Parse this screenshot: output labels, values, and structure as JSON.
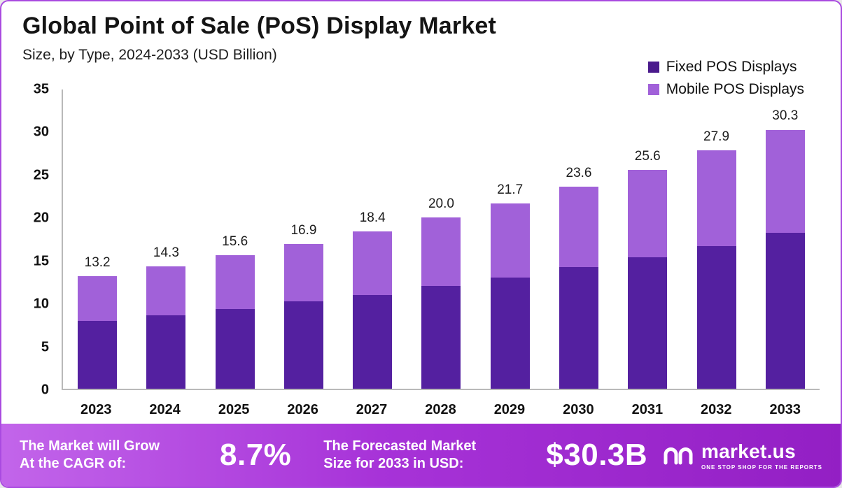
{
  "title": "Global Point of Sale (PoS) Display Market",
  "subtitle": "Size, by Type, 2024-2033 (USD Billion)",
  "colors": {
    "fixed": "#5420a0",
    "mobile": "#a161d9",
    "footer_gradient_start": "#c265ea",
    "footer_gradient_end": "#931fc4",
    "border": "#a94ae0"
  },
  "legend": [
    {
      "label": "Fixed POS Displays",
      "color": "#4a1a8c"
    },
    {
      "label": "Mobile POS Displays",
      "color": "#a161d9"
    }
  ],
  "chart_data": {
    "type": "bar",
    "stacked": true,
    "title": "Global Point of Sale (PoS) Display Market",
    "subtitle": "Size, by Type, 2024-2033 (USD Billion)",
    "xlabel": "",
    "ylabel": "USD Billion",
    "ylim": [
      0,
      35
    ],
    "yticks": [
      0,
      5,
      10,
      15,
      20,
      25,
      30,
      35
    ],
    "grid": false,
    "legend_position": "top-right",
    "categories": [
      "2023",
      "2024",
      "2025",
      "2026",
      "2027",
      "2028",
      "2029",
      "2030",
      "2031",
      "2032",
      "2033"
    ],
    "series": [
      {
        "name": "Fixed POS Displays",
        "color": "#5420a0",
        "values": [
          7.9,
          8.6,
          9.3,
          10.2,
          11.0,
          12.0,
          13.0,
          14.2,
          15.4,
          16.7,
          18.2
        ]
      },
      {
        "name": "Mobile POS Displays",
        "color": "#a161d9",
        "values": [
          5.3,
          5.7,
          6.3,
          6.7,
          7.4,
          8.0,
          8.7,
          9.4,
          10.2,
          11.2,
          12.1
        ]
      }
    ],
    "totals": [
      13.2,
      14.3,
      15.6,
      16.9,
      18.4,
      20.0,
      21.7,
      23.6,
      25.6,
      27.9,
      30.3
    ],
    "total_labels": [
      "13.2",
      "14.3",
      "15.6",
      "16.9",
      "18.4",
      "20.0",
      "21.7",
      "23.6",
      "25.6",
      "27.9",
      "30.3"
    ]
  },
  "footer": {
    "cagr_label": "The Market will Grow\nAt the CAGR of:",
    "cagr_value": "8.7%",
    "forecast_label": "The Forecasted Market\nSize for 2033 in USD:",
    "forecast_value": "$30.3B",
    "brand": "market.us",
    "brand_tagline": "ONE STOP SHOP FOR THE REPORTS"
  }
}
